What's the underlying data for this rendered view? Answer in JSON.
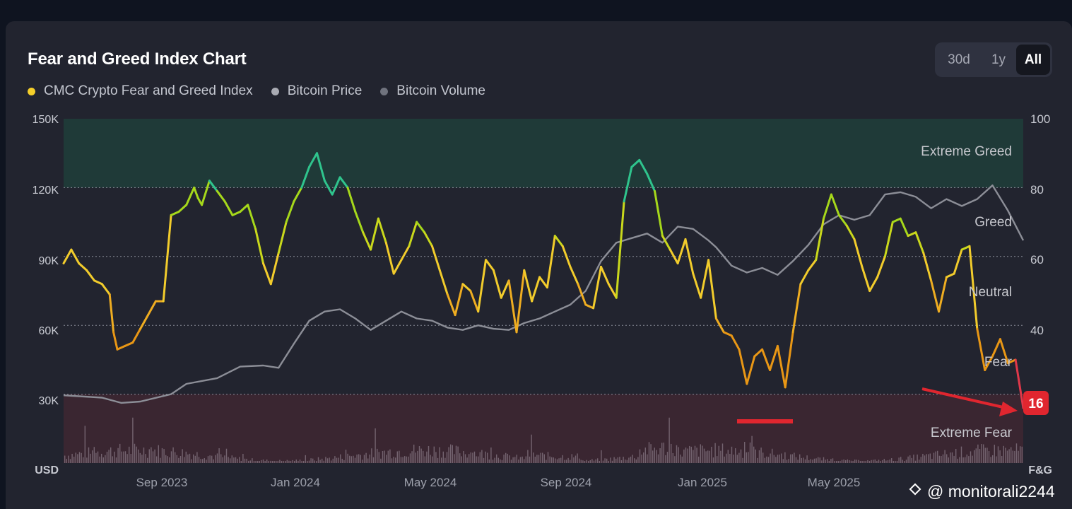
{
  "title": "Fear and Greed Index Chart",
  "legend": [
    {
      "label": "CMC Crypto Fear and Greed Index",
      "color": "#f5cf2a"
    },
    {
      "label": "Bitcoin Price",
      "color": "#a9abb3"
    },
    {
      "label": "Bitcoin Volume",
      "color": "#70737e"
    }
  ],
  "tabs": [
    "30d",
    "1y",
    "All"
  ],
  "active_tab": "All",
  "watermark": "@ monitorali2244",
  "chart_data": {
    "type": "line",
    "x_labels": [
      "Sep 2023",
      "Jan 2024",
      "May 2024",
      "Sep 2024",
      "Jan 2025",
      "May 2025"
    ],
    "left_axis": {
      "label": "USD",
      "ticks": [
        "150K",
        "120K",
        "90K",
        "60K",
        "30K"
      ],
      "range": [
        0,
        150000
      ]
    },
    "right_axis": {
      "label": "F&G",
      "ticks": [
        "100",
        "80",
        "60",
        "40"
      ],
      "range": [
        0,
        100
      ]
    },
    "zones": [
      "Extreme Greed",
      "Greed",
      "Neutral",
      "Fear",
      "Extreme Fear"
    ],
    "current_value": "16",
    "fear_greed": {
      "name": "CMC Crypto Fear and Greed Index",
      "points": [
        [
          0,
          58
        ],
        [
          2,
          62
        ],
        [
          4,
          58
        ],
        [
          6,
          56
        ],
        [
          8,
          53
        ],
        [
          10,
          52
        ],
        [
          12,
          49
        ],
        [
          13,
          38
        ],
        [
          14,
          33
        ],
        [
          16,
          34
        ],
        [
          18,
          35
        ],
        [
          20,
          39
        ],
        [
          22,
          43
        ],
        [
          24,
          47
        ],
        [
          26,
          47
        ],
        [
          28,
          72
        ],
        [
          30,
          73
        ],
        [
          32,
          75
        ],
        [
          34,
          80
        ],
        [
          35,
          77
        ],
        [
          36,
          75
        ],
        [
          38,
          82
        ],
        [
          40,
          79
        ],
        [
          42,
          76
        ],
        [
          44,
          72
        ],
        [
          46,
          73
        ],
        [
          48,
          75
        ],
        [
          50,
          68
        ],
        [
          52,
          58
        ],
        [
          54,
          52
        ],
        [
          56,
          61
        ],
        [
          58,
          70
        ],
        [
          60,
          76
        ],
        [
          62,
          80
        ],
        [
          64,
          86
        ],
        [
          66,
          90
        ],
        [
          68,
          82
        ],
        [
          70,
          78
        ],
        [
          72,
          83
        ],
        [
          74,
          80
        ],
        [
          76,
          73
        ],
        [
          78,
          67
        ],
        [
          80,
          62
        ],
        [
          82,
          71
        ],
        [
          84,
          64
        ],
        [
          86,
          55
        ],
        [
          88,
          59
        ],
        [
          90,
          63
        ],
        [
          92,
          70
        ],
        [
          94,
          67
        ],
        [
          96,
          63
        ],
        [
          98,
          56
        ],
        [
          100,
          49
        ],
        [
          102,
          43
        ],
        [
          104,
          52
        ],
        [
          106,
          50
        ],
        [
          108,
          44
        ],
        [
          110,
          59
        ],
        [
          112,
          56
        ],
        [
          114,
          48
        ],
        [
          116,
          53
        ],
        [
          118,
          38
        ],
        [
          120,
          56
        ],
        [
          122,
          47
        ],
        [
          124,
          54
        ],
        [
          126,
          51
        ],
        [
          128,
          66
        ],
        [
          130,
          63
        ],
        [
          132,
          57
        ],
        [
          134,
          52
        ],
        [
          136,
          46
        ],
        [
          138,
          45
        ],
        [
          140,
          57
        ],
        [
          142,
          52
        ],
        [
          144,
          48
        ],
        [
          146,
          76
        ],
        [
          148,
          86
        ],
        [
          150,
          88
        ],
        [
          152,
          84
        ],
        [
          154,
          79
        ],
        [
          156,
          66
        ],
        [
          158,
          62
        ],
        [
          160,
          58
        ],
        [
          162,
          65
        ],
        [
          164,
          55
        ],
        [
          166,
          48
        ],
        [
          168,
          59
        ],
        [
          170,
          42
        ],
        [
          172,
          38
        ],
        [
          174,
          37
        ],
        [
          176,
          33
        ],
        [
          178,
          23
        ],
        [
          180,
          31
        ],
        [
          182,
          33
        ],
        [
          184,
          27
        ],
        [
          186,
          34
        ],
        [
          188,
          22
        ],
        [
          190,
          38
        ],
        [
          192,
          52
        ],
        [
          194,
          56
        ],
        [
          196,
          59
        ],
        [
          198,
          71
        ],
        [
          200,
          78
        ],
        [
          202,
          72
        ],
        [
          204,
          69
        ],
        [
          206,
          65
        ],
        [
          208,
          57
        ],
        [
          210,
          50
        ],
        [
          212,
          54
        ],
        [
          214,
          60
        ],
        [
          216,
          70
        ],
        [
          218,
          71
        ],
        [
          220,
          66
        ],
        [
          222,
          67
        ],
        [
          224,
          61
        ],
        [
          226,
          53
        ],
        [
          228,
          44
        ],
        [
          230,
          54
        ],
        [
          232,
          55
        ],
        [
          234,
          62
        ],
        [
          236,
          63
        ],
        [
          238,
          39
        ],
        [
          240,
          27
        ],
        [
          242,
          31
        ],
        [
          244,
          36
        ],
        [
          246,
          29
        ],
        [
          248,
          30
        ],
        [
          250,
          16
        ]
      ]
    },
    "bitcoin_price": {
      "name": "Bitcoin Price",
      "points": [
        [
          0,
          29500
        ],
        [
          10,
          28500
        ],
        [
          15,
          26200
        ],
        [
          20,
          26800
        ],
        [
          28,
          30000
        ],
        [
          32,
          34500
        ],
        [
          40,
          37000
        ],
        [
          46,
          42000
        ],
        [
          52,
          42500
        ],
        [
          56,
          41500
        ],
        [
          60,
          52000
        ],
        [
          64,
          62000
        ],
        [
          68,
          66000
        ],
        [
          72,
          67000
        ],
        [
          76,
          63000
        ],
        [
          80,
          58000
        ],
        [
          84,
          62000
        ],
        [
          88,
          66000
        ],
        [
          92,
          63000
        ],
        [
          96,
          62000
        ],
        [
          100,
          59000
        ],
        [
          104,
          58000
        ],
        [
          108,
          60000
        ],
        [
          112,
          58500
        ],
        [
          116,
          58000
        ],
        [
          120,
          61000
        ],
        [
          124,
          63000
        ],
        [
          128,
          66000
        ],
        [
          132,
          69000
        ],
        [
          136,
          75000
        ],
        [
          140,
          88000
        ],
        [
          144,
          96000
        ],
        [
          148,
          98000
        ],
        [
          152,
          100000
        ],
        [
          156,
          96000
        ],
        [
          160,
          103000
        ],
        [
          164,
          102000
        ],
        [
          168,
          97000
        ],
        [
          170,
          94000
        ],
        [
          174,
          86000
        ],
        [
          178,
          83000
        ],
        [
          182,
          85000
        ],
        [
          186,
          82000
        ],
        [
          190,
          88000
        ],
        [
          194,
          95000
        ],
        [
          198,
          104000
        ],
        [
          202,
          108000
        ],
        [
          206,
          106000
        ],
        [
          210,
          108000
        ],
        [
          214,
          117000
        ],
        [
          218,
          118000
        ],
        [
          222,
          116000
        ],
        [
          226,
          111000
        ],
        [
          230,
          115000
        ],
        [
          234,
          112000
        ],
        [
          238,
          115000
        ],
        [
          242,
          121000
        ],
        [
          246,
          110000
        ],
        [
          250,
          97000
        ]
      ]
    }
  }
}
